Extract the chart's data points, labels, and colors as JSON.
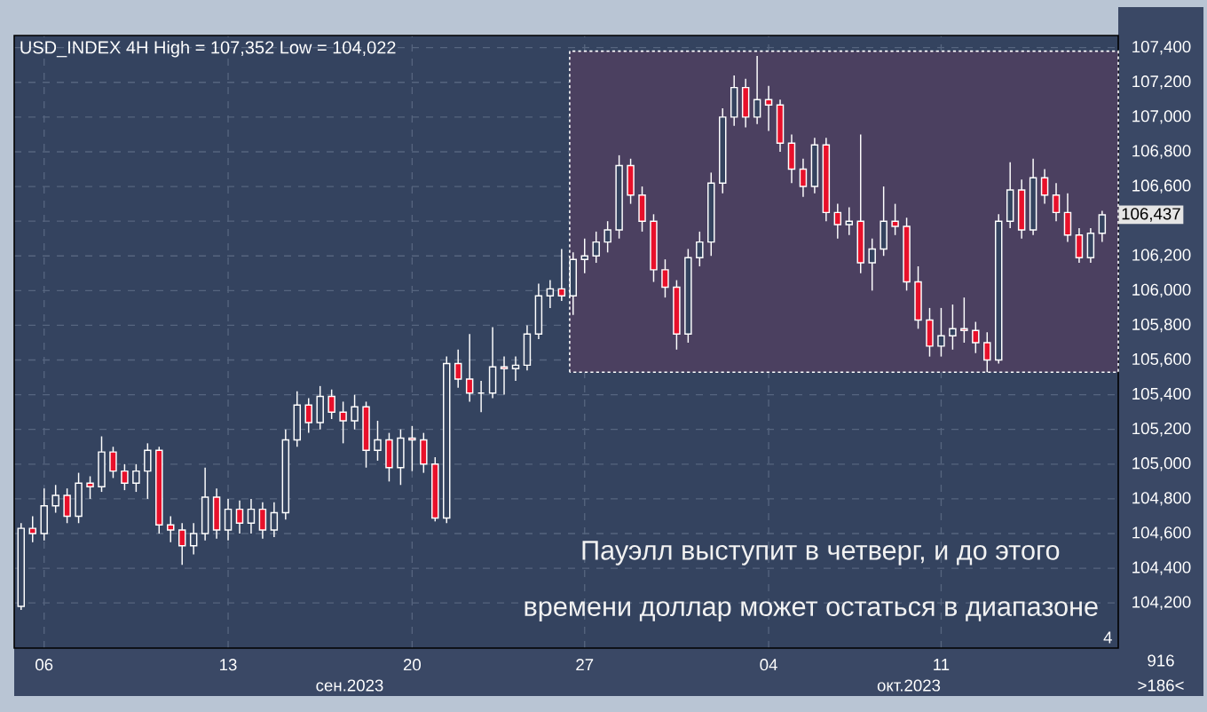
{
  "chart_data": {
    "type": "candlestick",
    "title": "USD_INDEX 4H High = 107,352 Low = 104,022",
    "categories": [
      null,
      null,
      "06",
      null,
      null,
      null,
      null,
      null,
      null,
      null,
      null,
      null,
      null,
      null,
      null,
      null,
      null,
      null,
      "13",
      null,
      null,
      null,
      null,
      null,
      null,
      null,
      null,
      null,
      null,
      null,
      null,
      null,
      null,
      null,
      "20",
      null,
      null,
      null,
      null,
      null,
      null,
      null,
      null,
      null,
      null,
      null,
      null,
      null,
      null,
      "27",
      null,
      null,
      null,
      null,
      null,
      null,
      null,
      null,
      null,
      null,
      null,
      null,
      null,
      null,
      null,
      "04",
      null,
      null,
      null,
      null,
      null,
      null,
      null,
      null,
      null,
      null,
      null,
      null,
      null,
      null,
      "11",
      null,
      null,
      null,
      null,
      null,
      null,
      null,
      null,
      null,
      null,
      null,
      null,
      null,
      null
    ],
    "ohlc": [
      [
        104180,
        104660,
        104160,
        104630
      ],
      [
        104630,
        104700,
        104550,
        104600
      ],
      [
        104600,
        104860,
        104560,
        104760
      ],
      [
        104760,
        104880,
        104720,
        104820
      ],
      [
        104820,
        104860,
        104660,
        104700
      ],
      [
        104700,
        104950,
        104660,
        104890
      ],
      [
        104890,
        104930,
        104800,
        104870
      ],
      [
        104870,
        105160,
        104840,
        105070
      ],
      [
        105070,
        105100,
        104920,
        104960
      ],
      [
        104960,
        105000,
        104850,
        104890
      ],
      [
        104890,
        105000,
        104840,
        104960
      ],
      [
        104960,
        105120,
        104800,
        105080
      ],
      [
        105080,
        105100,
        104600,
        104650
      ],
      [
        104650,
        104700,
        104550,
        104620
      ],
      [
        104620,
        104660,
        104420,
        104530
      ],
      [
        104530,
        104660,
        104480,
        104600
      ],
      [
        104600,
        104980,
        104560,
        104810
      ],
      [
        104810,
        104860,
        104570,
        104620
      ],
      [
        104620,
        104800,
        104560,
        104740
      ],
      [
        104740,
        104790,
        104600,
        104660
      ],
      [
        104660,
        104800,
        104600,
        104740
      ],
      [
        104740,
        104780,
        104570,
        104620
      ],
      [
        104620,
        104780,
        104580,
        104720
      ],
      [
        104720,
        105200,
        104680,
        105140
      ],
      [
        105140,
        105420,
        105100,
        105340
      ],
      [
        105340,
        105380,
        105180,
        105240
      ],
      [
        105240,
        105450,
        105200,
        105390
      ],
      [
        105390,
        105430,
        105260,
        105300
      ],
      [
        105300,
        105360,
        105120,
        105250
      ],
      [
        105250,
        105400,
        105200,
        105330
      ],
      [
        105330,
        105360,
        104980,
        105080
      ],
      [
        105080,
        105250,
        105020,
        105140
      ],
      [
        105140,
        105180,
        104900,
        104980
      ],
      [
        104980,
        105200,
        104880,
        105150
      ],
      [
        105150,
        105220,
        104960,
        105140
      ],
      [
        105140,
        105180,
        104950,
        105000
      ],
      [
        105000,
        105040,
        104670,
        104690
      ],
      [
        104690,
        105620,
        104660,
        105580
      ],
      [
        105580,
        105660,
        105440,
        105490
      ],
      [
        105490,
        105750,
        105360,
        105410
      ],
      [
        105410,
        105480,
        105300,
        105410
      ],
      [
        105410,
        105790,
        105380,
        105560
      ],
      [
        105560,
        105620,
        105400,
        105550
      ],
      [
        105550,
        105620,
        105480,
        105570
      ],
      [
        105570,
        105800,
        105540,
        105750
      ],
      [
        105750,
        106040,
        105720,
        105970
      ],
      [
        105970,
        106060,
        105900,
        106010
      ],
      [
        106010,
        106240,
        105940,
        105970
      ],
      [
        105970,
        106220,
        105860,
        106180
      ],
      [
        106180,
        106300,
        106100,
        106200
      ],
      [
        106200,
        106340,
        106160,
        106280
      ],
      [
        106280,
        106400,
        106220,
        106350
      ],
      [
        106350,
        106780,
        106300,
        106720
      ],
      [
        106720,
        106760,
        106500,
        106550
      ],
      [
        106550,
        106600,
        106340,
        106400
      ],
      [
        106400,
        106440,
        106050,
        106120
      ],
      [
        106120,
        106180,
        105960,
        106020
      ],
      [
        106020,
        106060,
        105660,
        105750
      ],
      [
        105750,
        106240,
        105700,
        106190
      ],
      [
        106190,
        106340,
        106140,
        106280
      ],
      [
        106280,
        106680,
        106200,
        106620
      ],
      [
        106620,
        107050,
        106560,
        107000
      ],
      [
        107000,
        107240,
        106950,
        107170
      ],
      [
        107170,
        107220,
        106940,
        107000
      ],
      [
        107000,
        107352,
        106960,
        107100
      ],
      [
        107100,
        107180,
        106920,
        107070
      ],
      [
        107070,
        107100,
        106800,
        106850
      ],
      [
        106850,
        106900,
        106620,
        106700
      ],
      [
        106700,
        106760,
        106540,
        106600
      ],
      [
        106600,
        106880,
        106560,
        106840
      ],
      [
        106840,
        106880,
        106400,
        106450
      ],
      [
        106450,
        106500,
        106300,
        106380
      ],
      [
        106380,
        106480,
        106320,
        106400
      ],
      [
        106400,
        106900,
        106100,
        106160
      ],
      [
        106160,
        106300,
        106000,
        106240
      ],
      [
        106240,
        106600,
        106200,
        106400
      ],
      [
        106400,
        106500,
        106320,
        106370
      ],
      [
        106370,
        106420,
        106000,
        106050
      ],
      [
        106050,
        106140,
        105780,
        105830
      ],
      [
        105830,
        105900,
        105620,
        105680
      ],
      [
        105680,
        105900,
        105620,
        105740
      ],
      [
        105740,
        105920,
        105660,
        105780
      ],
      [
        105780,
        105960,
        105700,
        105770
      ],
      [
        105770,
        105820,
        105640,
        105700
      ],
      [
        105700,
        105760,
        105530,
        105600
      ],
      [
        105600,
        106440,
        105580,
        106400
      ],
      [
        106400,
        106740,
        106360,
        106580
      ],
      [
        106580,
        106640,
        106300,
        106350
      ],
      [
        106350,
        106760,
        106320,
        106650
      ],
      [
        106650,
        106700,
        106500,
        106550
      ],
      [
        106550,
        106620,
        106400,
        106450
      ],
      [
        106450,
        106560,
        106280,
        106320
      ],
      [
        106320,
        106360,
        106160,
        106190
      ],
      [
        106190,
        106360,
        106160,
        106330
      ],
      [
        106330,
        106460,
        106280,
        106437
      ]
    ],
    "color": "#ffffff",
    "ylim": [
      103940,
      107470
    ],
    "yticks": [
      {
        "value": 104200,
        "label": "104,200"
      },
      {
        "value": 104400,
        "label": "104,400"
      },
      {
        "value": 104600,
        "label": "104,600"
      },
      {
        "value": 104800,
        "label": "104,800"
      },
      {
        "value": 105000,
        "label": "105,000"
      },
      {
        "value": 105200,
        "label": "105,200"
      },
      {
        "value": 105400,
        "label": "105,400"
      },
      {
        "value": 105600,
        "label": "105,600"
      },
      {
        "value": 105800,
        "label": "105,800"
      },
      {
        "value": 106000,
        "label": "106,000"
      },
      {
        "value": 106200,
        "label": "106,200"
      },
      {
        "value": 106400,
        "label": null
      },
      {
        "value": 106600,
        "label": "106,600"
      },
      {
        "value": 106800,
        "label": "106,800"
      },
      {
        "value": 107000,
        "label": "107,000"
      },
      {
        "value": 107200,
        "label": "107,200"
      },
      {
        "value": 107400,
        "label": "107,400"
      }
    ],
    "grid": true,
    "bands": [
      {
        "axis": "y",
        "from": 105530,
        "to": 107380,
        "color": "#4b4060"
      }
    ],
    "annotations": [
      "106,437",
      "Пауэлл выступит в четверг, и до этого",
      "времени доллар может остаться в диапазоне",
      "сен.2023",
      "окт.2023",
      "4",
      "916",
      ">186<"
    ]
  }
}
